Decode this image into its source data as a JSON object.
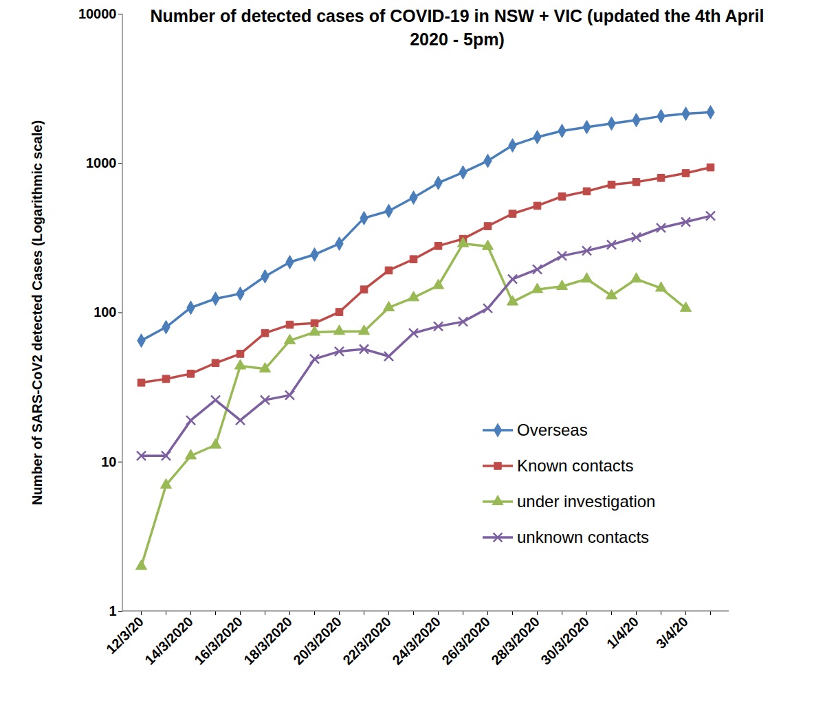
{
  "chart_data": {
    "type": "line",
    "title": "Number of detected cases of COVID-19 in NSW + VIC (updated the 4th April 2020 - 5pm)",
    "y_label": "Number of SARS-CoV2 detected Cases (Logarithmic scale)",
    "categories": [
      "12/3/20",
      null,
      "14/3/2020",
      null,
      "16/3/2020",
      null,
      "18/3/2020",
      null,
      "20/3/2020",
      null,
      "22/3/2020",
      null,
      "24/3/2020",
      null,
      "26/3/2020",
      null,
      "28/3/2020",
      null,
      "30/3/2020",
      null,
      "1/4/20",
      null,
      "3/4/20",
      null
    ],
    "log": "y",
    "ylim": [
      1,
      10000
    ],
    "yticks": [
      1,
      10,
      100,
      1000,
      10000
    ],
    "grid": false,
    "legend": "right",
    "series": [
      {
        "name": "Overseas",
        "color": "#4a7ebb",
        "marker": "diamond",
        "values": [
          65,
          80,
          108,
          124,
          134,
          175,
          218,
          245,
          290,
          430,
          480,
          590,
          740,
          870,
          1040,
          1320,
          1500,
          1650,
          1750,
          1850,
          1950,
          2070,
          2150,
          2200
        ]
      },
      {
        "name": "Known contacts",
        "color": "#be4b48",
        "marker": "square",
        "values": [
          34,
          36,
          39,
          46,
          53,
          73,
          83,
          85,
          101,
          143,
          192,
          228,
          280,
          312,
          380,
          460,
          520,
          600,
          650,
          720,
          750,
          800,
          860,
          940
        ]
      },
      {
        "name": "under investigation",
        "color": "#98b954",
        "marker": "triangle",
        "values": [
          2,
          7,
          11,
          13,
          44,
          42,
          65,
          74,
          75,
          75,
          108,
          126,
          152,
          290,
          278,
          118,
          143,
          150,
          168,
          130,
          168,
          146,
          107,
          null
        ]
      },
      {
        "name": "unknown contacts",
        "color": "#7d60a0",
        "marker": "times",
        "values": [
          11,
          11,
          19,
          26,
          19,
          26,
          28,
          49,
          55,
          57,
          51,
          73,
          81,
          87,
          107,
          168,
          195,
          240,
          260,
          285,
          320,
          370,
          405,
          445
        ]
      }
    ]
  }
}
